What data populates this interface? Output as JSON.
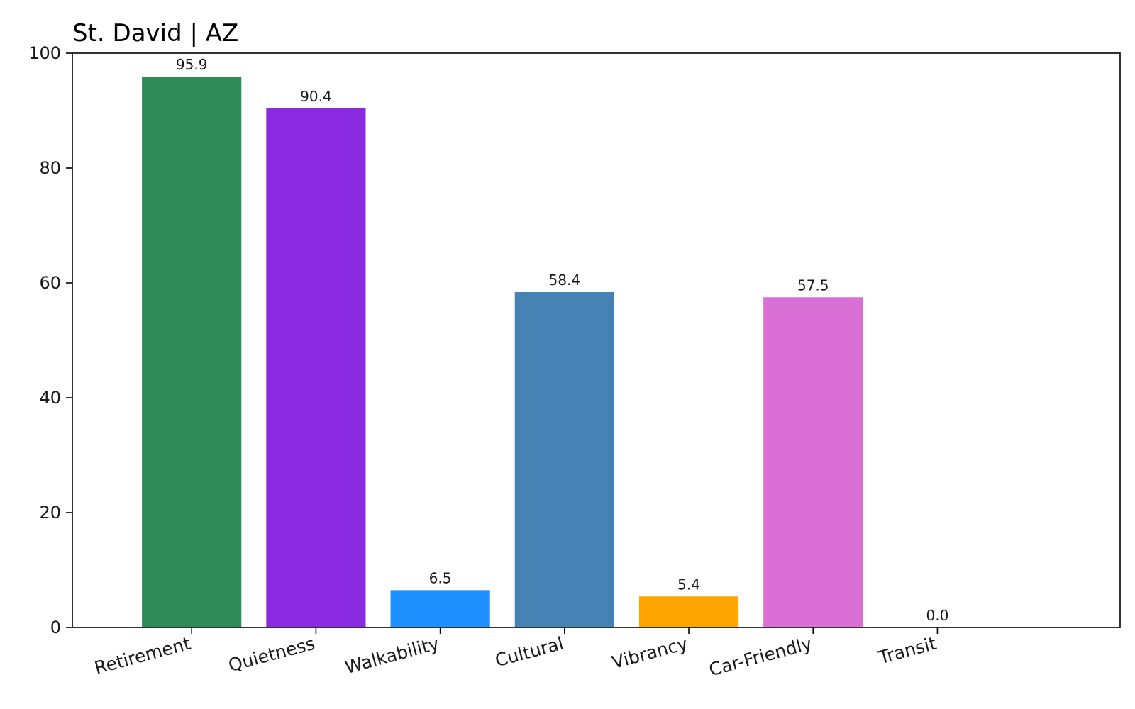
{
  "chart_data": {
    "type": "bar",
    "title": "St. David | AZ",
    "xlabel": "",
    "ylabel": "",
    "ylim": [
      0,
      100
    ],
    "yticks": [
      0,
      20,
      40,
      60,
      80,
      100
    ],
    "grid": false,
    "legend": "none",
    "categories": [
      "Retirement",
      "Quietness",
      "Walkability",
      "Cultural",
      "Vibrancy",
      "Car-Friendly",
      "Transit"
    ],
    "values": [
      95.9,
      90.4,
      6.5,
      58.4,
      5.4,
      57.5,
      0.0
    ],
    "value_labels": [
      "95.9",
      "90.4",
      "6.5",
      "58.4",
      "5.4",
      "57.5",
      "0.0"
    ],
    "colors": [
      "#2e8b57",
      "#8a2be2",
      "#1e90ff",
      "#4682b4",
      "#ffa500",
      "#da70d6",
      "#808080"
    ]
  }
}
